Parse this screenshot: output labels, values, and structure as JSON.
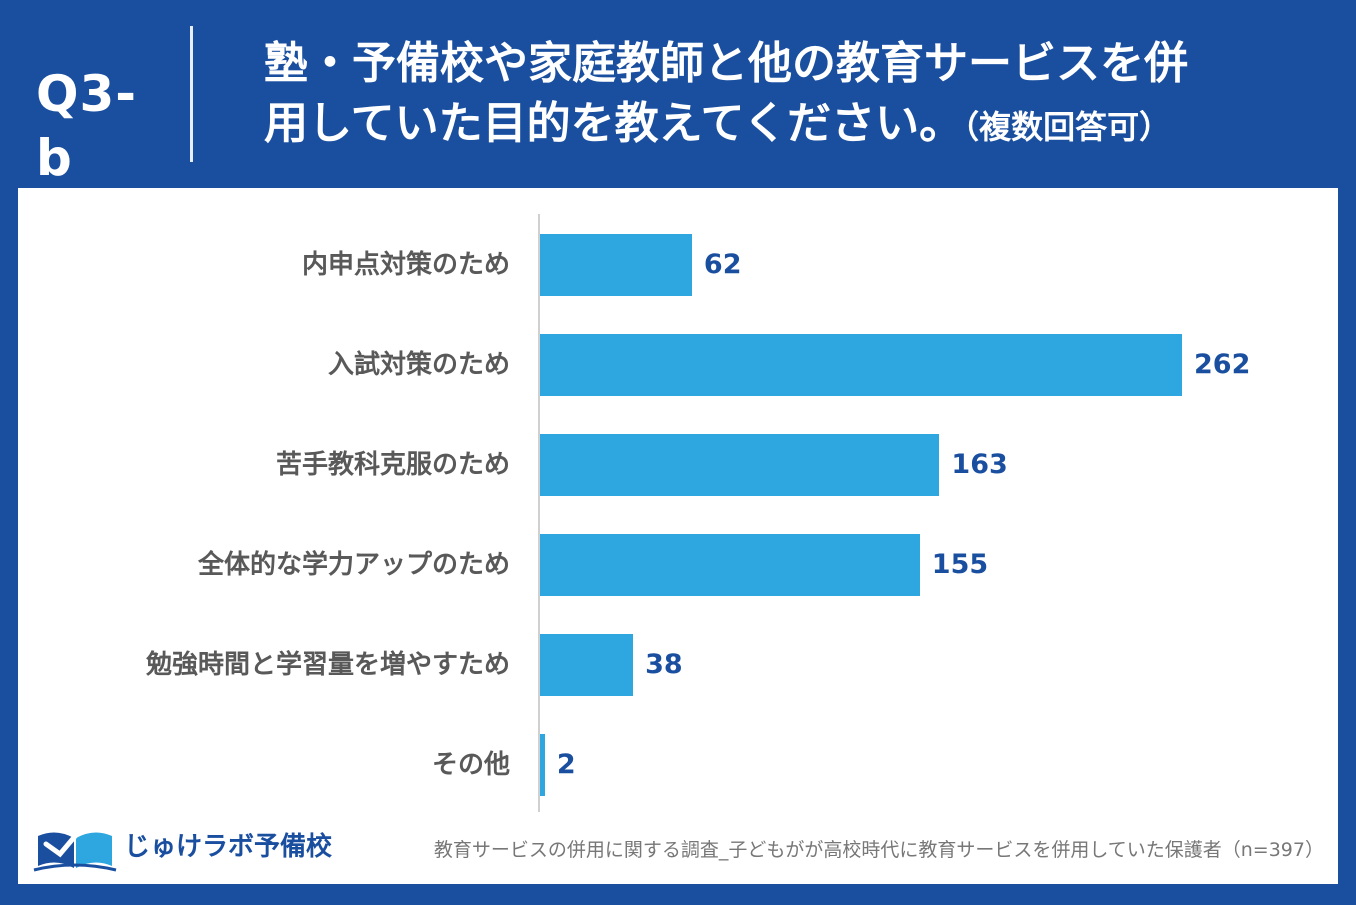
{
  "header": {
    "question_label": "Q3-b",
    "title_line1": "塾・予備校や家庭教師と他の教育サービスを併",
    "title_line2": "用していた目的を教えてください。",
    "title_note": "（複数回答可）"
  },
  "chart_data": {
    "type": "bar",
    "orientation": "horizontal",
    "categories": [
      "内申点対策のため",
      "入試対策のため",
      "苦手教科克服のため",
      "全体的な学力アップのため",
      "勉強時間と学習量を増やすため",
      "その他"
    ],
    "values": [
      62,
      262,
      163,
      155,
      38,
      2
    ],
    "value_labels": [
      "62",
      "262",
      "163",
      "155",
      "38",
      "2"
    ],
    "xlim": [
      0,
      262
    ],
    "grid": false,
    "legend": "none",
    "bar_color": "#2ea7e0",
    "value_label_color": "#1a4fa0"
  },
  "footer": {
    "logo_text": "じゅけラボ予備校",
    "source": "教育サービスの併用に関する調査_子どもがが高校時代に教育サービスを併用していた保護者（n=397）"
  },
  "colors": {
    "brand": "#1a4fa0",
    "bar": "#2ea7e0",
    "label": "#595959"
  }
}
